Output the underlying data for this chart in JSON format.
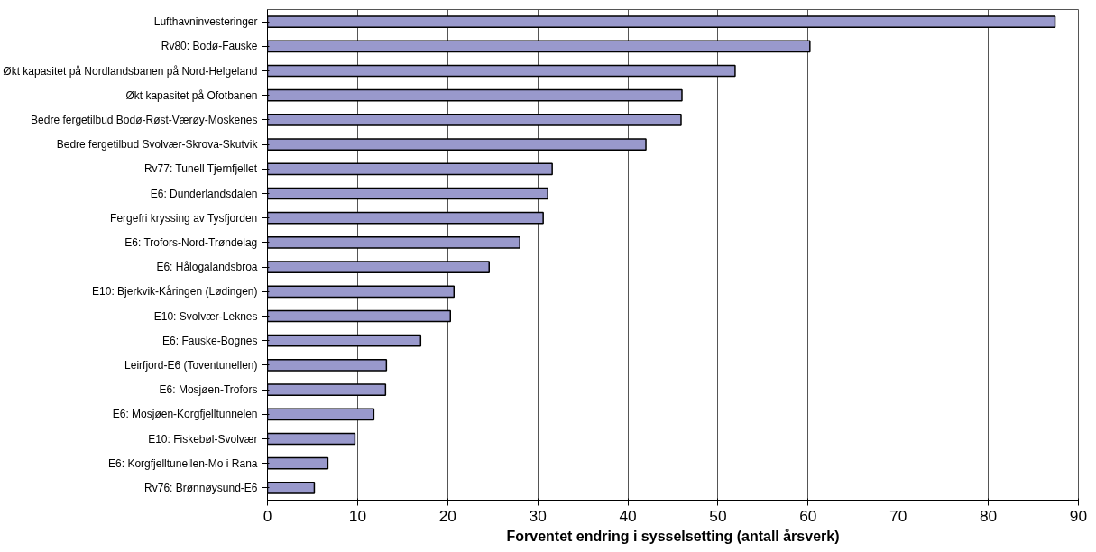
{
  "chart_data": {
    "type": "bar",
    "orientation": "horizontal",
    "xlabel": "Forventet endring i sysselsetting (antall årsverk)",
    "categories": [
      "Lufthavninvesteringer",
      "Rv80: Bodø-Fauske",
      "Økt kapasitet på Nordlandsbanen på Nord-Helgeland",
      "Økt kapasitet på Ofotbanen",
      "Bedre fergetilbud Bodø-Røst-Værøy-Moskenes",
      "Bedre fergetilbud Svolvær-Skrova-Skutvik",
      "Rv77: Tunell Tjernfjellet",
      "E6: Dunderlandsdalen",
      "Fergefri kryssing av Tysfjorden",
      "E6: Trofors-Nord-Trøndelag",
      "E6: Hålogalandsbroa",
      "E10: Bjerkvik-Kåringen (Lødingen)",
      "E10: Svolvær-Leknes",
      "E6: Fauske-Bognes",
      "Leirfjord-E6 (Toventunellen)",
      "E6: Mosjøen-Trofors",
      "E6: Mosjøen-Korgfjelltunnelen",
      "E10: Fiskebøl-Svolvær",
      "E6: Korgfjelltunellen-Mo i Rana",
      "Rv76: Brønnøysund-E6"
    ],
    "values": [
      87.4,
      60.2,
      51.9,
      46.0,
      45.9,
      42.0,
      31.6,
      31.1,
      30.6,
      28.0,
      24.6,
      20.7,
      20.3,
      17.0,
      13.2,
      13.1,
      11.8,
      9.7,
      6.7,
      5.2
    ],
    "color": "#9999cc",
    "xlim": [
      0,
      90
    ],
    "xticks": [
      0,
      10,
      20,
      30,
      40,
      50,
      60,
      70,
      80,
      90
    ],
    "grid": "x"
  }
}
